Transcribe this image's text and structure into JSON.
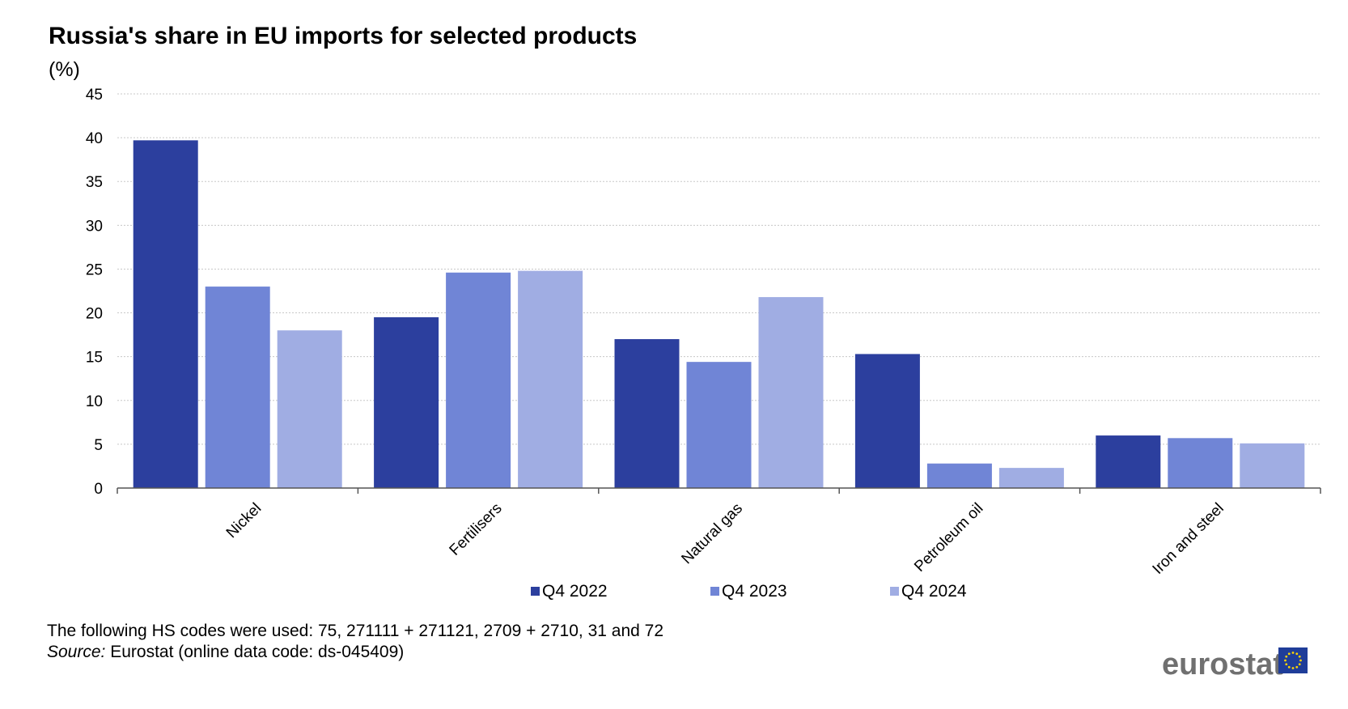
{
  "chart_data": {
    "type": "bar",
    "title": "Russia's share in EU imports for selected products",
    "unit_label": "(%)",
    "categories": [
      "Nickel",
      "Fertilisers",
      "Natural gas",
      "Petroleum oil",
      "Iron and steel"
    ],
    "series": [
      {
        "name": "Q4 2022",
        "color": "#2c3f9e",
        "values": [
          39.7,
          19.5,
          17.0,
          15.3,
          6.0
        ]
      },
      {
        "name": "Q4 2023",
        "color": "#7085d6",
        "values": [
          23.0,
          24.6,
          14.4,
          2.8,
          5.7
        ]
      },
      {
        "name": "Q4 2024",
        "color": "#a0ade3",
        "values": [
          18.0,
          24.8,
          21.8,
          2.3,
          5.1
        ]
      }
    ],
    "ylim": [
      0,
      45
    ],
    "yticks": [
      0,
      5,
      10,
      15,
      20,
      25,
      30,
      35,
      40,
      45
    ],
    "grid": true,
    "legend_position": "bottom"
  },
  "footnote": {
    "line1": "The following HS codes were used: 75, 271111 + 271121, 2709 + 2710, 31 and 72",
    "source_label": "Source:",
    "source_text": " Eurostat (online data code: ds-045409)"
  },
  "logo": {
    "text": "eurostat",
    "flag_color": "#1f3d99",
    "star_color": "#ffd500"
  }
}
